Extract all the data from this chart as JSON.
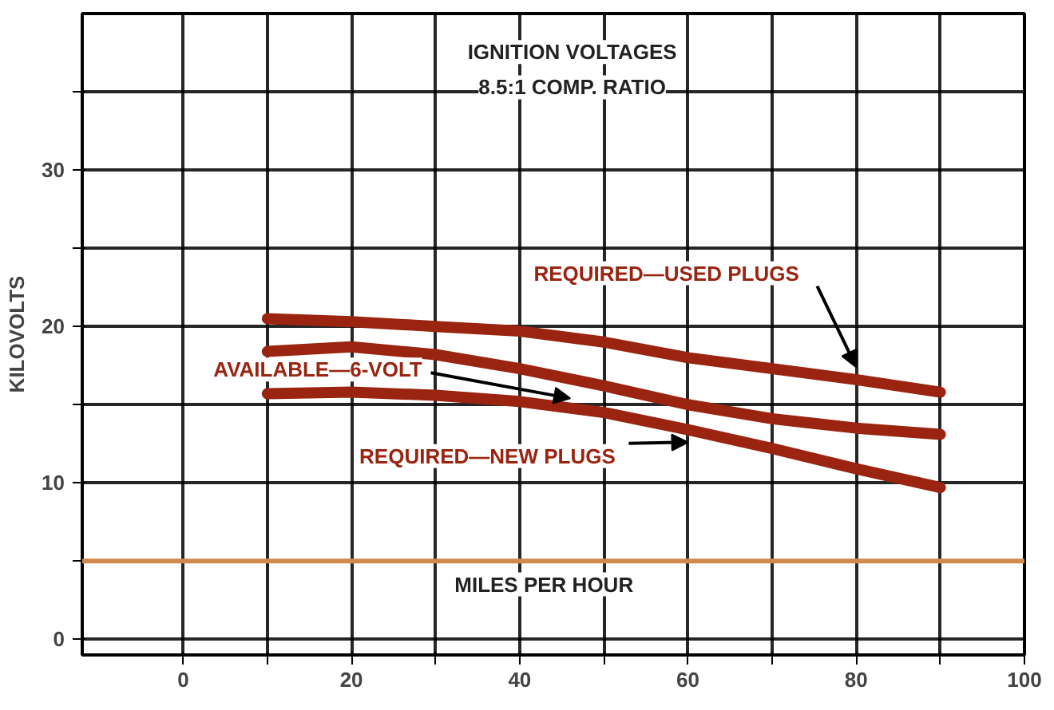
{
  "chart_data": {
    "type": "line",
    "title": "IGNITION VOLTAGES",
    "subtitle": "8.5:1 COMP. RATIO",
    "xlabel": "MILES PER HOUR",
    "ylabel": "KILOVOLTS",
    "x": [
      10,
      20,
      30,
      40,
      50,
      60,
      70,
      80,
      90
    ],
    "series": [
      {
        "name": "REQUIRED—USED PLUGS",
        "color": "#9a2410",
        "values": [
          20.5,
          20.3,
          20.0,
          19.7,
          19.0,
          18.0,
          17.3,
          16.6,
          15.8
        ]
      },
      {
        "name": "AVAILABLE—6-VOLT",
        "color": "#9a2410",
        "values": [
          18.4,
          18.7,
          18.2,
          17.3,
          16.2,
          15.0,
          14.1,
          13.5,
          13.1
        ]
      },
      {
        "name": "REQUIRED—NEW PLUGS",
        "color": "#9a2410",
        "values": [
          15.7,
          15.8,
          15.6,
          15.2,
          14.5,
          13.4,
          12.2,
          10.9,
          9.7
        ]
      }
    ],
    "xlim": [
      -12,
      100
    ],
    "ylim": [
      -1,
      40
    ],
    "xticks": [
      0,
      {
        "value": 10,
        "label": null
      },
      20,
      {
        "value": 30,
        "label": null
      },
      40,
      {
        "value": 50,
        "label": null
      },
      60,
      {
        "value": 70,
        "label": null
      },
      80,
      {
        "value": 90,
        "label": null
      },
      100
    ],
    "yticks": [
      0,
      {
        "value": 5,
        "label": null
      },
      10,
      {
        "value": 15,
        "label": null
      },
      20,
      {
        "value": 25,
        "label": null
      },
      30,
      {
        "value": 35,
        "label": null
      }
    ],
    "ref_lines": [
      {
        "axis": "y",
        "value": 5,
        "label": null,
        "color": "#d08a50"
      }
    ],
    "grid": true,
    "marker": "none",
    "line_style": "solid"
  }
}
